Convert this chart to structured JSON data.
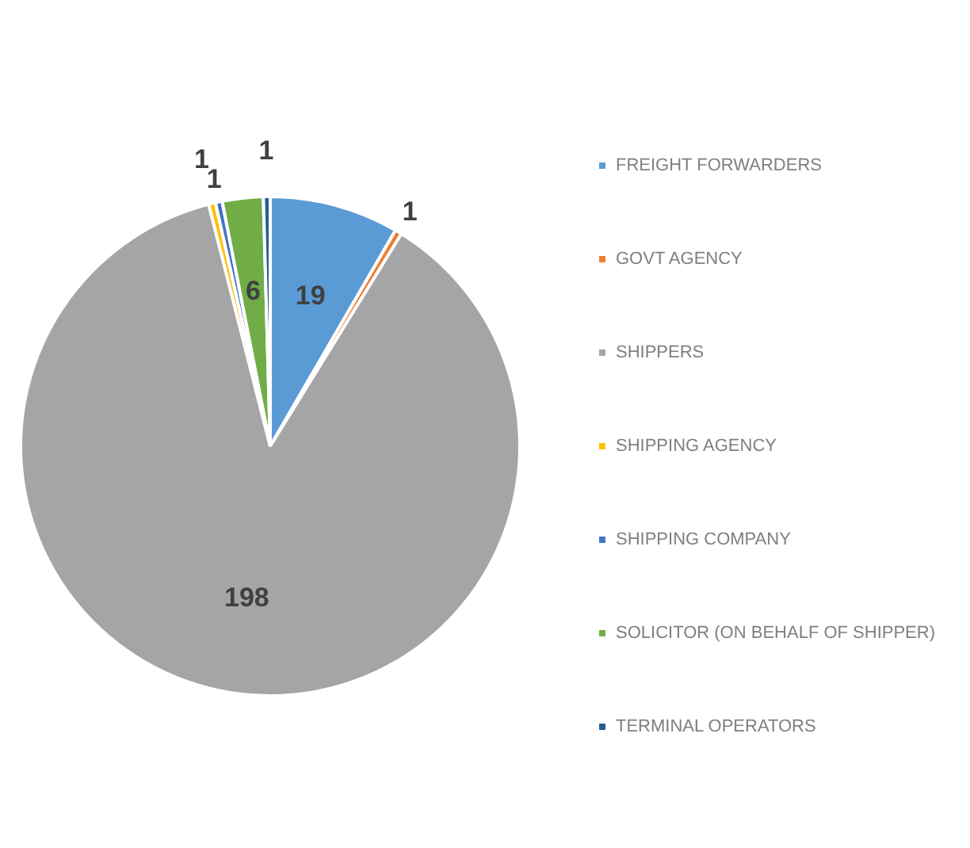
{
  "chart_data": {
    "type": "pie",
    "categories": [
      "FREIGHT FORWARDERS",
      "GOVT AGENCY",
      "SHIPPERS",
      "SHIPPING AGENCY",
      "SHIPPING COMPANY",
      "SOLICITOR (ON BEHALF OF SHIPPER)",
      "TERMINAL OPERATORS"
    ],
    "values": [
      19,
      1,
      198,
      1,
      1,
      6,
      1
    ],
    "colors": [
      "#5b9bd5",
      "#ed7d31",
      "#a5a5a5",
      "#ffc000",
      "#4472c4",
      "#70ad47",
      "#255e91"
    ],
    "data_labels": true,
    "legend": "right"
  }
}
